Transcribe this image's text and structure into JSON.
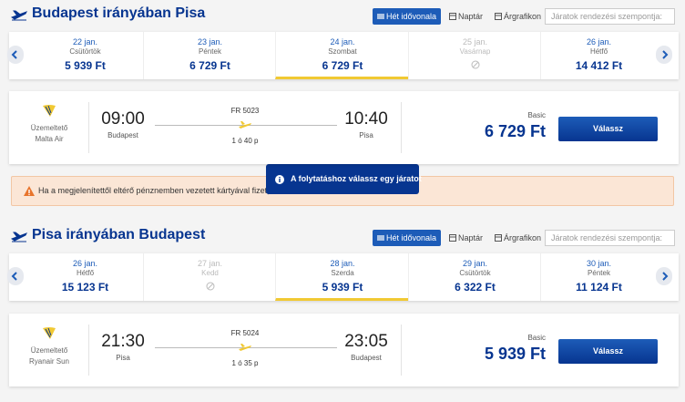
{
  "sections": [
    {
      "title": "Budapest irányában Pisa",
      "tabs": [
        "Hét idővonala",
        "Naptár",
        "Árgrafikon"
      ],
      "sort_placeholder": "Járatok rendezési szempontja:",
      "dates": [
        {
          "date": "22 jan.",
          "weekday": "Csütörtök",
          "price": "5 939 Ft"
        },
        {
          "date": "23 jan.",
          "weekday": "Péntek",
          "price": "6 729 Ft"
        },
        {
          "date": "24 jan.",
          "weekday": "Szombat",
          "price": "6 729 Ft",
          "selected": true
        },
        {
          "date": "25 jan.",
          "weekday": "Vasárnap"
        },
        {
          "date": "26 jan.",
          "weekday": "Hétfő",
          "price": "14 412 Ft"
        }
      ],
      "flight": {
        "operator_label": "Üzemeltető",
        "operator": "Malta Air",
        "departure_time": "09:00",
        "departure_city": "Budapest",
        "flight_number": "FR 5023",
        "duration": "1 ó 40 p",
        "arrival_time": "10:40",
        "arrival_city": "Pisa",
        "fare": "Basic",
        "price": "6 729 Ft",
        "button": "Válassz"
      }
    },
    {
      "title": "Pisa irányában Budapest",
      "tabs": [
        "Hét idővonala",
        "Naptár",
        "Árgrafikon"
      ],
      "sort_placeholder": "Járatok rendezési szempontja:",
      "dates": [
        {
          "date": "26 jan.",
          "weekday": "Hétfő",
          "price": "15 123 Ft"
        },
        {
          "date": "27 jan.",
          "weekday": "Kedd"
        },
        {
          "date": "28 jan.",
          "weekday": "Szerda",
          "price": "5 939 Ft",
          "selected": true
        },
        {
          "date": "29 jan.",
          "weekday": "Csütörtök",
          "price": "6 322 Ft"
        },
        {
          "date": "30 jan.",
          "weekday": "Péntek",
          "price": "11 124 Ft"
        }
      ],
      "flight": {
        "operator_label": "Üzemeltető",
        "operator": "Ryanair Sun",
        "departure_time": "21:30",
        "departure_city": "Pisa",
        "flight_number": "FR 5024",
        "duration": "1 ó 35 p",
        "arrival_time": "23:05",
        "arrival_city": "Budapest",
        "fare": "Basic",
        "price": "5 939 Ft",
        "button": "Válassz"
      }
    }
  ],
  "notice": {
    "text": "Ha a megjelenítettől eltérő pénznemben vezetett kártyával fizet, a"
  },
  "tooltip": {
    "text": "A folytatáshoz válassz egy járatot"
  }
}
